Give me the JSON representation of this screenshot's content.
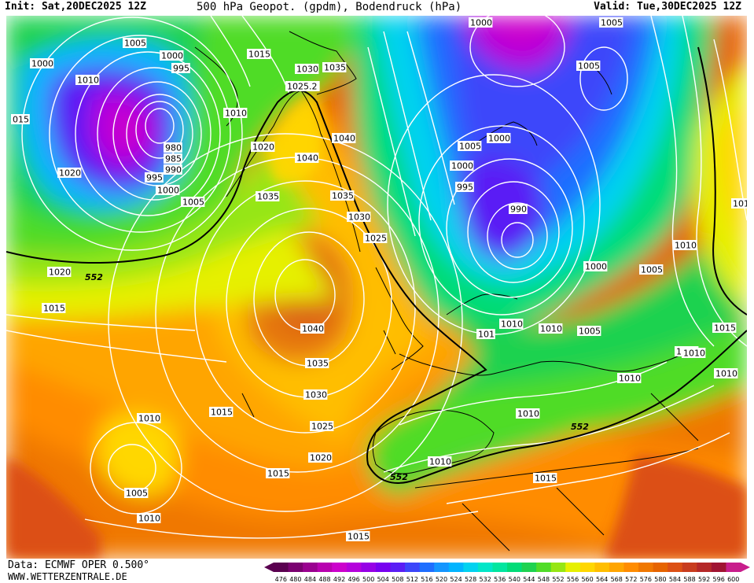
{
  "header": {
    "init": "Init: Sat,20DEC2025 12Z",
    "title": "500 hPa Geopot. (gpdm), Bodendruck (hPa)",
    "valid": "Valid: Tue,30DEC2025 12Z"
  },
  "footer": {
    "data_source": "Data: ECMWF OPER 0.500°",
    "url": "WWW.WETTERZENTRALE.DE"
  },
  "colorbar": {
    "labels": [
      "476",
      "480",
      "484",
      "488",
      "492",
      "496",
      "500",
      "504",
      "508",
      "512",
      "516",
      "520",
      "524",
      "528",
      "532",
      "536",
      "540",
      "544",
      "548",
      "552",
      "556",
      "560",
      "564",
      "568",
      "572",
      "576",
      "580",
      "584",
      "588",
      "592",
      "596",
      "600"
    ],
    "colors": [
      "#5a0050",
      "#7a0070",
      "#9a0090",
      "#b800b0",
      "#cc00cc",
      "#b400dc",
      "#9600e6",
      "#7800f0",
      "#5a1ef5",
      "#3c46fa",
      "#1e6eff",
      "#1496ff",
      "#00b4ff",
      "#00d2f0",
      "#00e6c8",
      "#00e6a0",
      "#00dc78",
      "#1ed250",
      "#50dc28",
      "#96e614",
      "#e6f000",
      "#ffd700",
      "#ffbe00",
      "#ffa500",
      "#ff8c00",
      "#f07800",
      "#e66400",
      "#dc5014",
      "#c83c1e",
      "#b42828",
      "#a01432",
      "#c81e8c"
    ]
  },
  "map": {
    "contour_line_label": "552",
    "pressure_labels": [
      {
        "text": "1005"
      },
      {
        "text": "1000"
      },
      {
        "text": "995"
      },
      {
        "text": "1000"
      },
      {
        "text": "1010"
      },
      {
        "text": "1015"
      },
      {
        "text": "015"
      },
      {
        "text": "1030"
      },
      {
        "text": "1035"
      },
      {
        "text": "1025.2"
      },
      {
        "text": "1010"
      },
      {
        "text": "980"
      },
      {
        "text": "985"
      },
      {
        "text": "990"
      },
      {
        "text": "995"
      },
      {
        "text": "1000"
      },
      {
        "text": "1005"
      },
      {
        "text": "1020"
      },
      {
        "text": "1020"
      },
      {
        "text": "1040"
      },
      {
        "text": "1040"
      },
      {
        "text": "1035"
      },
      {
        "text": "1035"
      },
      {
        "text": "1030"
      },
      {
        "text": "1025"
      },
      {
        "text": "1000"
      },
      {
        "text": "1005"
      },
      {
        "text": "1000"
      },
      {
        "text": "1005"
      },
      {
        "text": "1005"
      },
      {
        "text": "1000"
      },
      {
        "text": "995"
      },
      {
        "text": "990"
      },
      {
        "text": "1000"
      },
      {
        "text": "1005"
      },
      {
        "text": "1010"
      },
      {
        "text": "1020"
      },
      {
        "text": "1015"
      },
      {
        "text": "1040"
      },
      {
        "text": "1035"
      },
      {
        "text": "1030"
      },
      {
        "text": "1025"
      },
      {
        "text": "1020"
      },
      {
        "text": "1015"
      },
      {
        "text": "1010"
      },
      {
        "text": "1005"
      },
      {
        "text": "1010"
      },
      {
        "text": "1015"
      },
      {
        "text": "1010"
      },
      {
        "text": "1015"
      },
      {
        "text": "1010"
      },
      {
        "text": "1010"
      },
      {
        "text": "1010"
      },
      {
        "text": "1005"
      },
      {
        "text": "1010"
      },
      {
        "text": "1015"
      },
      {
        "text": "1010"
      },
      {
        "text": "1015"
      },
      {
        "text": "1010"
      },
      {
        "text": "1010"
      },
      {
        "text": "1015"
      },
      {
        "text": "101"
      }
    ]
  }
}
